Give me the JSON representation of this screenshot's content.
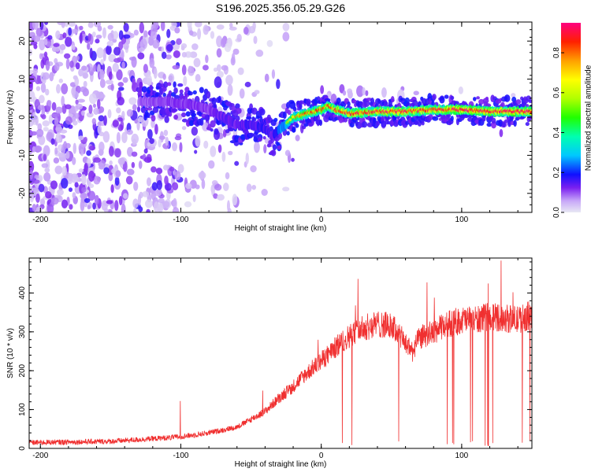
{
  "title": "S196.2025.356.05.29.G26",
  "chart_data": [
    {
      "type": "heatmap",
      "name": "spectrogram",
      "xlabel": "Height of straight line (km)",
      "ylabel": "Frequency (Hz)",
      "xlim": [
        -208,
        150
      ],
      "ylim": [
        -25,
        25
      ],
      "xticks": [
        -200,
        -100,
        0,
        100
      ],
      "yticks": [
        -20,
        -10,
        0,
        10,
        20
      ],
      "colorbar": {
        "label": "Normalized spectral amplitude",
        "range": [
          0,
          0.95
        ],
        "ticks": [
          0.0,
          0.2,
          0.4,
          0.6,
          0.8
        ],
        "tick_labels": [
          "0.0",
          "0.2",
          "0.4",
          "0.6",
          "0.8"
        ]
      },
      "ridge": {
        "x": [
          -130,
          -110,
          -90,
          -80,
          -70,
          -60,
          -50,
          -40,
          -35,
          -30,
          -25,
          -20,
          -10,
          0,
          5,
          10,
          20,
          40,
          60,
          80,
          100,
          120,
          150
        ],
        "freq": [
          4,
          4,
          3,
          2,
          0,
          -2,
          -2,
          -3,
          -5,
          -3,
          -2,
          0,
          1,
          2,
          3,
          2,
          1,
          1.5,
          1.5,
          2,
          2,
          1.5,
          1.5
        ],
        "amplitude": [
          0.2,
          0.25,
          0.25,
          0.25,
          0.3,
          0.3,
          0.35,
          0.35,
          0.3,
          0.5,
          0.6,
          0.7,
          0.75,
          0.8,
          0.75,
          0.8,
          0.85,
          0.85,
          0.85,
          0.85,
          0.9,
          0.9,
          0.9
        ]
      }
    },
    {
      "type": "line",
      "name": "snr",
      "xlabel": "Height of straight line (km)",
      "ylabel": "SNR (10 * v/v)",
      "xlim": [
        -208,
        150
      ],
      "ylim": [
        0,
        490
      ],
      "xticks": [
        -200,
        -100,
        0,
        100
      ],
      "yticks": [
        0,
        100,
        200,
        300,
        400
      ],
      "color": "#f03030",
      "trend": {
        "x": [
          -208,
          -150,
          -120,
          -100,
          -80,
          -60,
          -50,
          -40,
          -30,
          -20,
          -10,
          0,
          10,
          20,
          30,
          40,
          50,
          55,
          60,
          65,
          70,
          80,
          90,
          100,
          110,
          120,
          130,
          140,
          150
        ],
        "y": [
          15,
          18,
          25,
          30,
          40,
          55,
          75,
          95,
          130,
          160,
          195,
          225,
          260,
          290,
          310,
          320,
          315,
          295,
          270,
          250,
          285,
          300,
          320,
          330,
          330,
          340,
          335,
          330,
          345
        ]
      }
    }
  ]
}
